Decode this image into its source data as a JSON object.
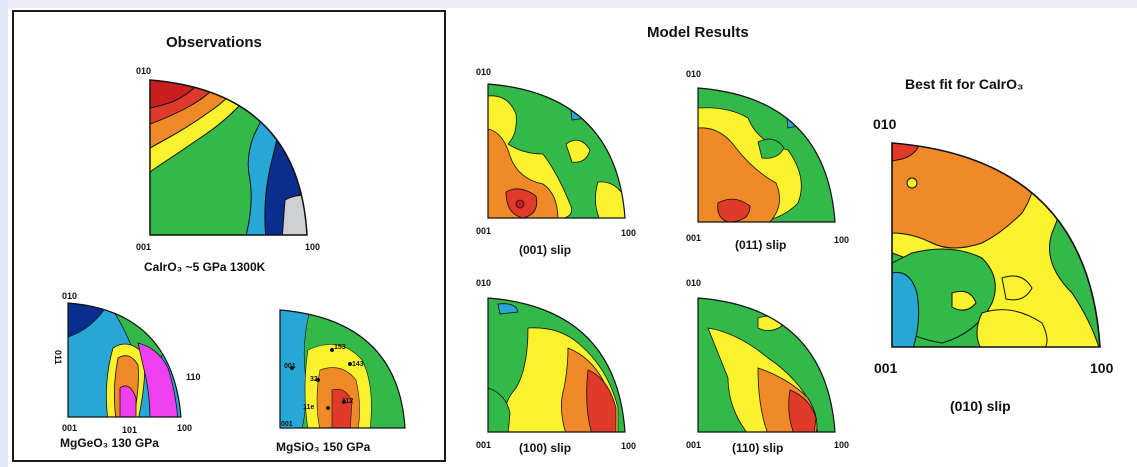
{
  "observations": {
    "title": "Observations",
    "main": {
      "top_label": "010",
      "left_label": "001",
      "right_label": "100",
      "caption": "CaIrO₃ ~5 GPa 1300K"
    },
    "mggeo3": {
      "top_label": "010",
      "side_label": "011",
      "left_label": "001",
      "mid_label": "101",
      "right_label": "100",
      "edge_label": "110",
      "caption": "MgGeO₃ 130 GPa"
    },
    "mgsio3": {
      "caption": "MgSiO₃ 150 GPa",
      "annotations": [
        "153",
        "143",
        "001",
        "32",
        "11e",
        "112",
        "001"
      ]
    }
  },
  "model": {
    "title": "Model Results",
    "plots": [
      {
        "top_label": "010",
        "left_label": "001",
        "right_label": "100",
        "caption": "(001) slip"
      },
      {
        "top_label": "010",
        "left_label": "001",
        "right_label": "100",
        "caption": "(011) slip"
      },
      {
        "top_label": "010",
        "left_label": "001",
        "right_label": "100",
        "caption": "(100) slip"
      },
      {
        "top_label": "010",
        "left_label": "001",
        "right_label": "100",
        "caption": "(110) slip"
      }
    ]
  },
  "best_fit": {
    "title": "Best fit for CaIrO₃",
    "top_label": "010",
    "left_label": "001",
    "right_label": "100",
    "caption": "(010) slip"
  },
  "colors": {
    "dark_red": "#c81e1e",
    "red": "#e23a2a",
    "orange": "#f08a28",
    "yellow": "#fbf22e",
    "green": "#33b84a",
    "cyan": "#27a7d6",
    "blue": "#1e4fb8",
    "dark_blue": "#0a2e8e",
    "magenta": "#ee40ee",
    "gray": "#cfd0d4"
  }
}
